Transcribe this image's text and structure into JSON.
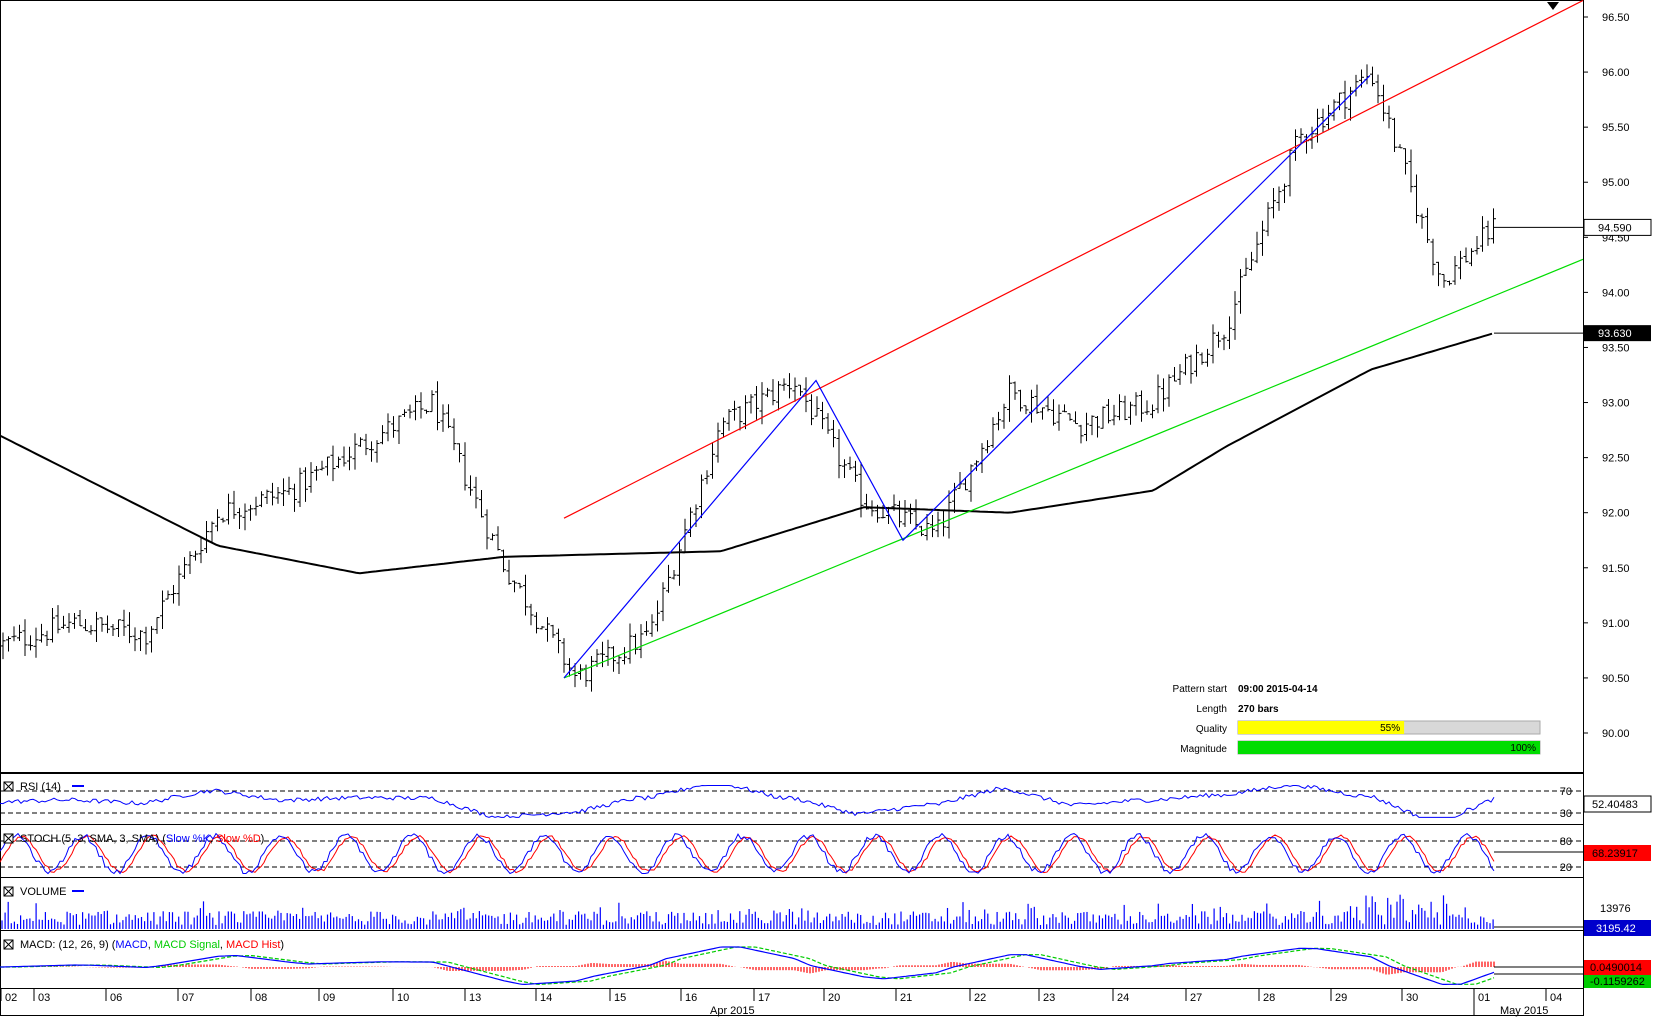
{
  "chart_data": {
    "type": "candlestick",
    "instrument_timeframe": "hourly OHLC bars",
    "price_axis": {
      "ticks": [
        "96.50",
        "96.00",
        "95.50",
        "95.00",
        "94.50",
        "94.00",
        "93.50",
        "93.00",
        "92.50",
        "92.00",
        "91.50",
        "91.00",
        "90.50",
        "90.00"
      ],
      "range": [
        89.6,
        96.5
      ],
      "current_price_label": "94.590",
      "ma_price_label": "93.630"
    },
    "time_axis": {
      "day_labels": [
        "02",
        "03",
        "06",
        "07",
        "08",
        "09",
        "10",
        "13",
        "14",
        "15",
        "16",
        "17",
        "20",
        "21",
        "22",
        "23",
        "24",
        "27",
        "28",
        "29",
        "30",
        "01",
        "04"
      ],
      "month_labels": [
        "Apr 2015",
        "May 2015"
      ]
    },
    "price_path_keypoints": [
      {
        "day": "02",
        "close": 90.8
      },
      {
        "day": "03",
        "close": 91.0
      },
      {
        "day": "06",
        "close": 90.9
      },
      {
        "day": "07",
        "close": 92.0
      },
      {
        "day": "08",
        "close": 92.2
      },
      {
        "day": "09",
        "close": 92.6
      },
      {
        "day": "10",
        "close": 93.0
      },
      {
        "day": "13",
        "close": 91.5
      },
      {
        "day": "14",
        "close": 90.5
      },
      {
        "day": "15",
        "close": 90.9
      },
      {
        "day": "16",
        "close": 92.8
      },
      {
        "day": "17",
        "close": 93.2
      },
      {
        "day": "20",
        "close": 92.1
      },
      {
        "day": "21",
        "close": 91.8
      },
      {
        "day": "22",
        "close": 93.1
      },
      {
        "day": "23",
        "close": 92.8
      },
      {
        "day": "24",
        "close": 93.0
      },
      {
        "day": "27",
        "close": 93.7
      },
      {
        "day": "28",
        "close": 95.4
      },
      {
        "day": "29",
        "close": 96.0
      },
      {
        "day": "30",
        "close": 94.1
      },
      {
        "day": "01",
        "close": 94.59
      }
    ],
    "moving_average": {
      "color": "#000000",
      "points": [
        {
          "day": "02",
          "value": 92.7
        },
        {
          "day": "07",
          "value": 91.7
        },
        {
          "day": "09",
          "value": 91.45
        },
        {
          "day": "13",
          "value": 91.6
        },
        {
          "day": "16",
          "value": 91.65
        },
        {
          "day": "20",
          "value": 92.05
        },
        {
          "day": "22",
          "value": 92.0
        },
        {
          "day": "24",
          "value": 92.2
        },
        {
          "day": "27",
          "value": 92.6
        },
        {
          "day": "29",
          "value": 93.3
        },
        {
          "day": "01",
          "value": 93.63
        }
      ]
    },
    "pattern": {
      "resistance_line": {
        "color": "#ff0000",
        "from": {
          "day": "14",
          "price": 91.95
        },
        "to": {
          "day": "04",
          "price": 96.65
        }
      },
      "support_line": {
        "color": "#00dd00",
        "from": {
          "day": "14",
          "price": 90.5
        },
        "to": {
          "day": "04",
          "price": 94.3
        }
      },
      "zigzag": {
        "color": "#0000ff",
        "points": [
          {
            "day": "14",
            "price": 90.5
          },
          {
            "day": "20",
            "price": 93.2
          },
          {
            "day": "21",
            "price": 91.75
          },
          {
            "day": "29",
            "price": 95.97
          }
        ]
      },
      "info": [
        {
          "label": "Pattern start",
          "value": "09:00 2015-04-14"
        },
        {
          "label": "Length",
          "value": "270 bars"
        },
        {
          "label": "Quality",
          "value": "55%",
          "fraction": 0.55,
          "color": "#ffff00"
        },
        {
          "label": "Magnitude",
          "value": "100%",
          "fraction": 1.0,
          "color": "#00dd00"
        }
      ]
    },
    "indicators": {
      "rsi": {
        "label": "RSI (14)",
        "line_color": "#0000ff",
        "levels": [
          "70",
          "30"
        ],
        "level_values": [
          70,
          30
        ],
        "value_label": "52.40483"
      },
      "stoch": {
        "label_prefix": "STOCH (5, 3, SMA, 3, SMA)",
        "slow_k_label": "Slow %K",
        "slow_d_label": "Slow %D",
        "k_color": "#0000ff",
        "d_color": "#ff0000",
        "levels": [
          "80",
          "20"
        ],
        "level_values": [
          80,
          20
        ],
        "value_label": "68.23917"
      },
      "volume": {
        "label": "VOLUME",
        "bar_color": "#0000ff",
        "tick_label": "13976",
        "value_label": "3195.42"
      },
      "macd": {
        "label_prefix": "MACD: (12, 26, 9) (",
        "macd_label": "MACD",
        "signal_label": "MACD Signal",
        "hist_label": "MACD Hist",
        "macd_color": "#0000ff",
        "signal_color": "#00cc00",
        "hist_color": "#ff0000",
        "value_label": "0.0490014",
        "value_label_2": "-0.1159262"
      }
    }
  }
}
